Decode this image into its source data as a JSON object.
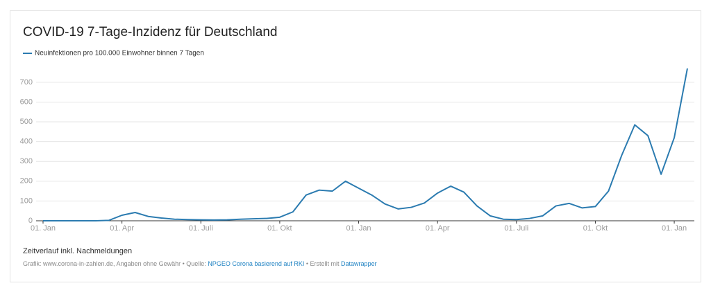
{
  "chart_data": {
    "type": "line",
    "title": "COVID-19 7-Tage-Inzidenz für Deutschland",
    "note": "Zeitverlauf inkl. Nachmeldungen",
    "source": [
      {
        "text": "Grafik: www.corona-in-zahlen.de, Angaben ohne Gewähr • Quelle: ",
        "link": false
      },
      {
        "text": "NPGEO Corona basierend auf RKI",
        "link": true
      },
      {
        "text": " • Erstellt mit ",
        "link": false
      },
      {
        "text": "Datawrapper",
        "link": true
      }
    ],
    "categories": [
      "01. Jan",
      null,
      null,
      null,
      null,
      null,
      "01. Apr",
      null,
      null,
      null,
      null,
      null,
      "01. Juli",
      null,
      null,
      null,
      null,
      null,
      "01. Okt",
      null,
      null,
      null,
      null,
      null,
      "01. Jan",
      null,
      null,
      null,
      null,
      null,
      "01. Apr",
      null,
      null,
      null,
      null,
      null,
      "01. Juli",
      null,
      null,
      null,
      null,
      null,
      "01. Okt",
      null,
      null,
      null,
      null,
      null,
      "01. Jan",
      null
    ],
    "series": [
      {
        "name": "Neuinfektionen pro 100.000 Einwohner binnen 7 Tagen",
        "color": "#2b7bb0",
        "values": [
          0,
          0,
          0,
          0,
          0,
          2,
          28,
          42,
          22,
          14,
          8,
          6,
          5,
          4,
          5,
          8,
          10,
          12,
          18,
          45,
          130,
          155,
          150,
          200,
          165,
          130,
          85,
          60,
          68,
          90,
          140,
          175,
          145,
          75,
          25,
          8,
          6,
          12,
          25,
          75,
          88,
          65,
          72,
          150,
          330,
          485,
          430,
          235,
          420,
          770
        ]
      }
    ],
    "ylim": [
      0,
      780
    ],
    "yticks": [
      0,
      100,
      200,
      300,
      400,
      500,
      600,
      700
    ],
    "grid": true
  }
}
